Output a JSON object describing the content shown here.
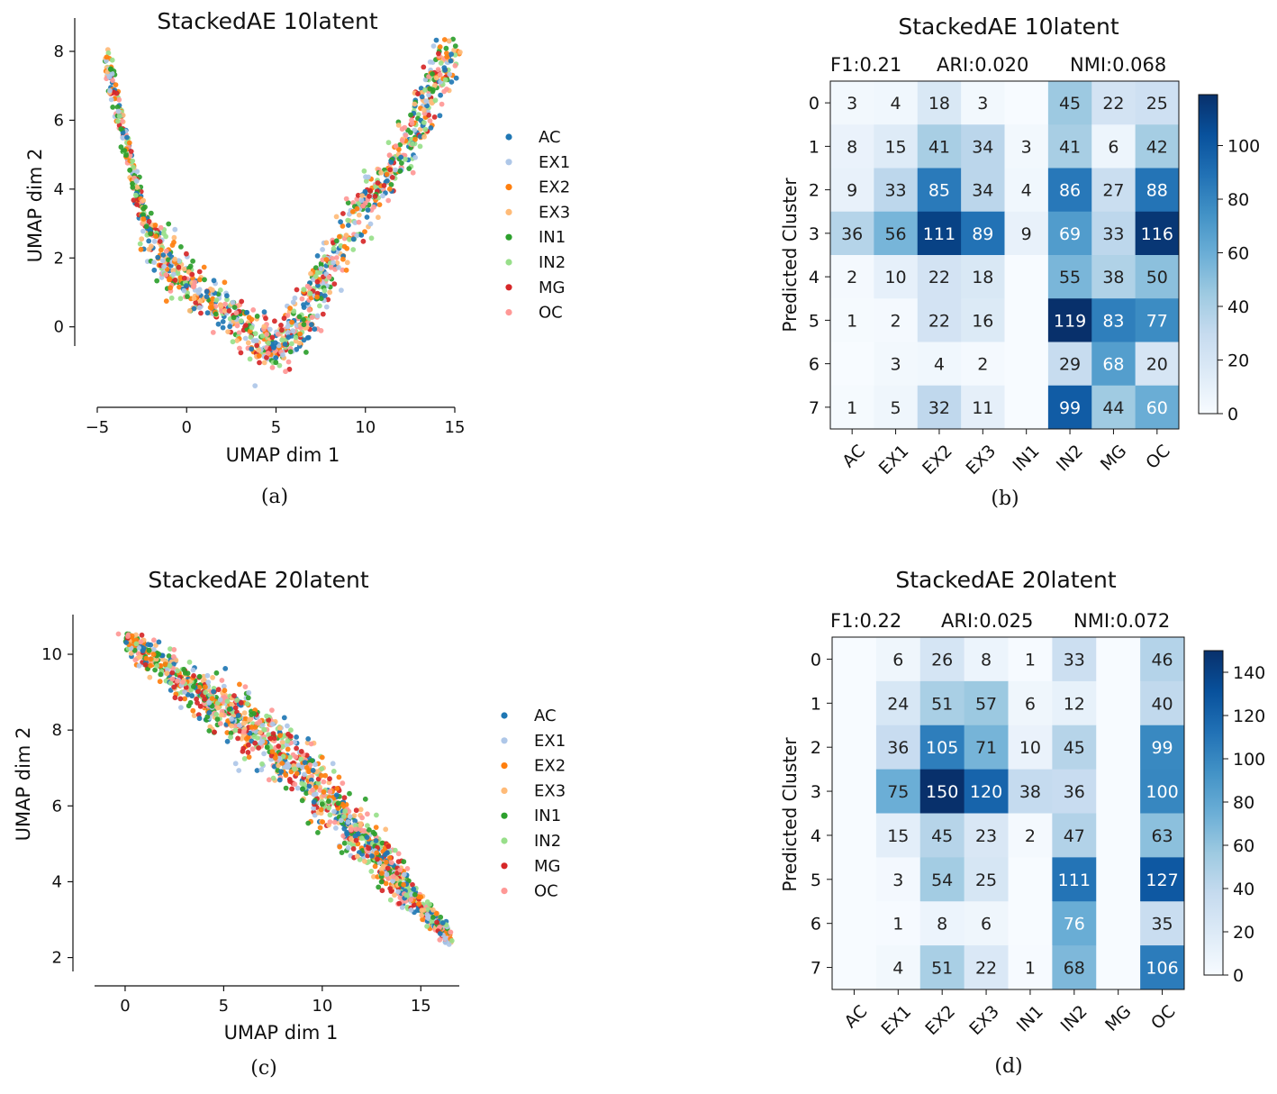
{
  "panel_labels": {
    "a": "(a)",
    "b": "(b)",
    "c": "(c)",
    "d": "(d)"
  },
  "chart_data": [
    {
      "id": "a",
      "type": "scatter",
      "title": "StackedAE 10latent",
      "xlabel": "UMAP dim 1",
      "ylabel": "UMAP dim 2",
      "xlim": [
        -5,
        15
      ],
      "ylim": [
        -1.5,
        8
      ],
      "xticks": [
        -5,
        0,
        5,
        10,
        15
      ],
      "xtick_labels": [
        "−5",
        "0",
        "5",
        "10",
        "15"
      ],
      "yticks": [
        0,
        2,
        4,
        6,
        8
      ],
      "ytick_labels": [
        "0",
        "2",
        "4",
        "6",
        "8"
      ],
      "legend": [
        "AC",
        "EX1",
        "EX2",
        "EX3",
        "IN1",
        "IN2",
        "MG",
        "OC"
      ],
      "colors": [
        "#1f77b4",
        "#aec7e8",
        "#ff7f0e",
        "#ffbb78",
        "#2ca02c",
        "#98df8a",
        "#d62728",
        "#ff9896"
      ],
      "series_shape": {
        "kind": "u-curve",
        "points": [
          [
            -4.5,
            7.9
          ],
          [
            -3.5,
            5.5
          ],
          [
            -2.5,
            3.3
          ],
          [
            -1,
            1.8
          ],
          [
            1,
            0.8
          ],
          [
            3,
            0.2
          ],
          [
            5,
            -0.8
          ],
          [
            6.5,
            0.3
          ],
          [
            8,
            1.8
          ],
          [
            10,
            3.6
          ],
          [
            12,
            5.0
          ],
          [
            13.5,
            6.5
          ],
          [
            14.8,
            8.2
          ]
        ]
      }
    },
    {
      "id": "b",
      "type": "heatmap",
      "title": "StackedAE 10latent",
      "metrics": [
        "F1:0.21",
        "ARI:0.020",
        "NMI:0.068"
      ],
      "xlabel": "",
      "ylabel": "Predicted Cluster",
      "x_categories": [
        "AC",
        "EX1",
        "EX2",
        "EX3",
        "IN1",
        "IN2",
        "MG",
        "OC"
      ],
      "y_categories": [
        "0",
        "1",
        "2",
        "3",
        "4",
        "5",
        "6",
        "7"
      ],
      "vmax": 119,
      "colorbar_ticks": [
        0,
        20,
        40,
        60,
        80,
        100
      ],
      "values": [
        [
          3,
          4,
          18,
          3,
          0,
          45,
          22,
          25
        ],
        [
          8,
          15,
          41,
          34,
          3,
          41,
          6,
          42
        ],
        [
          9,
          33,
          85,
          34,
          4,
          86,
          27,
          88
        ],
        [
          36,
          56,
          111,
          89,
          9,
          69,
          33,
          116
        ],
        [
          2,
          10,
          22,
          18,
          0,
          55,
          38,
          50
        ],
        [
          1,
          2,
          22,
          16,
          0,
          119,
          83,
          77
        ],
        [
          0,
          3,
          4,
          2,
          0,
          29,
          68,
          20
        ],
        [
          1,
          5,
          32,
          11,
          0,
          99,
          44,
          60
        ]
      ]
    },
    {
      "id": "c",
      "type": "scatter",
      "title": "StackedAE 20latent",
      "xlabel": "UMAP dim 1",
      "ylabel": "UMAP dim 2",
      "xlim": [
        -0.5,
        17
      ],
      "ylim": [
        1.8,
        10.5
      ],
      "xticks": [
        0,
        5,
        10,
        15
      ],
      "xtick_labels": [
        "0",
        "5",
        "10",
        "15"
      ],
      "yticks": [
        2,
        4,
        6,
        8,
        10
      ],
      "ytick_labels": [
        "2",
        "4",
        "6",
        "8",
        "10"
      ],
      "legend": [
        "AC",
        "EX1",
        "EX2",
        "EX3",
        "IN1",
        "IN2",
        "MG",
        "OC"
      ],
      "colors": [
        "#1f77b4",
        "#aec7e8",
        "#ff7f0e",
        "#ffbb78",
        "#2ca02c",
        "#98df8a",
        "#d62728",
        "#ff9896"
      ],
      "series_shape": {
        "kind": "diagonal-band",
        "points": [
          [
            0,
            10.4
          ],
          [
            3,
            9.3
          ],
          [
            6,
            8.2
          ],
          [
            9,
            6.9
          ],
          [
            12,
            5.2
          ],
          [
            14,
            3.9
          ],
          [
            16.5,
            2.5
          ]
        ]
      }
    },
    {
      "id": "d",
      "type": "heatmap",
      "title": "StackedAE 20latent",
      "metrics": [
        "F1:0.22",
        "ARI:0.025",
        "NMI:0.072"
      ],
      "xlabel": "",
      "ylabel": "Predicted Cluster",
      "x_categories": [
        "AC",
        "EX1",
        "EX2",
        "EX3",
        "IN1",
        "IN2",
        "MG",
        "OC"
      ],
      "y_categories": [
        "0",
        "1",
        "2",
        "3",
        "4",
        "5",
        "6",
        "7"
      ],
      "vmax": 150,
      "colorbar_ticks": [
        0,
        20,
        40,
        60,
        80,
        100,
        120,
        140
      ],
      "values": [
        [
          0,
          6,
          26,
          8,
          1,
          33,
          0,
          46
        ],
        [
          0,
          24,
          51,
          57,
          6,
          12,
          0,
          40
        ],
        [
          0,
          36,
          105,
          71,
          10,
          45,
          0,
          99
        ],
        [
          0,
          75,
          150,
          120,
          38,
          36,
          0,
          100
        ],
        [
          0,
          15,
          45,
          23,
          2,
          47,
          0,
          63
        ],
        [
          0,
          3,
          54,
          25,
          0,
          111,
          0,
          127
        ],
        [
          0,
          1,
          8,
          6,
          0,
          76,
          0,
          35
        ],
        [
          0,
          4,
          51,
          22,
          1,
          68,
          0,
          106
        ]
      ]
    }
  ]
}
